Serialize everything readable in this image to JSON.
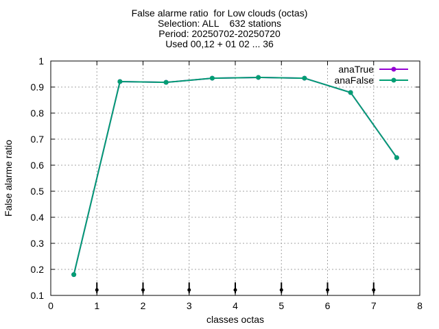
{
  "chart_data": {
    "type": "line",
    "title_lines": [
      "False alarme ratio  for Low clouds (octas)",
      "Selection: ALL    632 stations",
      "Period: 20250702-20250720",
      "Used 00,12 + 01 02 ... 36"
    ],
    "xlabel": "classes octas",
    "ylabel": "False alarme ratio",
    "xlim": [
      0,
      8
    ],
    "ylim": [
      0.1,
      1.0
    ],
    "x_ticks": [
      0,
      1,
      2,
      3,
      4,
      5,
      6,
      7,
      8
    ],
    "x_tick_labels": [
      "0",
      "1",
      "2",
      "3",
      "4",
      "5",
      "6",
      "7",
      "8"
    ],
    "y_ticks": [
      0.1,
      0.2,
      0.3,
      0.4,
      0.5,
      0.6,
      0.7,
      0.8,
      0.9,
      1.0
    ],
    "y_tick_labels": [
      "0.1",
      "0.2",
      "0.3",
      "0.4",
      "0.5",
      "0.6",
      "0.7",
      "0.8",
      "0.9",
      "1"
    ],
    "grid": true,
    "legend_position": "top-right",
    "x": [
      0.5,
      1.5,
      2.5,
      3.5,
      4.5,
      5.5,
      6.5,
      7.5
    ],
    "series": [
      {
        "name": "anaTrue",
        "color": "#9400d3",
        "values": [
          0.18,
          0.921,
          0.918,
          0.934,
          0.937,
          0.934,
          0.879,
          0.629
        ]
      },
      {
        "name": "anaFalse",
        "color": "#009e73",
        "values": [
          0.18,
          0.921,
          0.918,
          0.934,
          0.937,
          0.934,
          0.879,
          0.629
        ]
      }
    ],
    "bottom_markers_x": [
      1,
      2,
      3,
      4,
      5,
      6,
      7
    ]
  }
}
